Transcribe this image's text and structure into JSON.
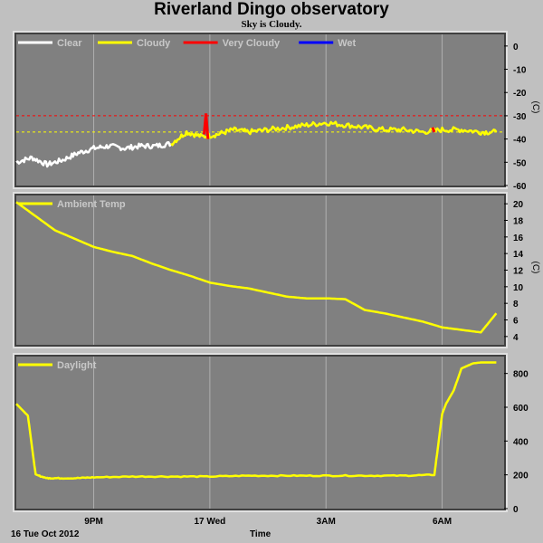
{
  "title": "Riverland Dingo observatory",
  "subtitle": "Sky is Cloudy.",
  "footer": {
    "date": "16 Tue Oct 2012",
    "time_label": "Time"
  },
  "x_ticks": [
    {
      "label": "9PM",
      "t": 2.0
    },
    {
      "label": "17 Wed",
      "t": 5.0
    },
    {
      "label": "3AM",
      "t": 8.0
    },
    {
      "label": "6AM",
      "t": 11.0
    }
  ],
  "colors": {
    "background": "#c0c0c0",
    "plot_bg": "#808080",
    "clear": "#ffffff",
    "cloudy": "#ffff00",
    "very_cloudy": "#ff0000",
    "wet": "#0000ff"
  },
  "chart_data": [
    {
      "type": "line",
      "name": "sky",
      "yunit": "(C)",
      "ylim": [
        -60,
        5
      ],
      "yticks": [
        0,
        -10,
        -20,
        -30,
        -40,
        -50,
        -60
      ],
      "legend": [
        {
          "label": "Clear",
          "color": "#ffffff"
        },
        {
          "label": "Cloudy",
          "color": "#ffff00"
        },
        {
          "label": "Very Cloudy",
          "color": "#ff0000"
        },
        {
          "label": "Wet",
          "color": "#0000ff"
        }
      ],
      "thresholds": [
        {
          "value": -30,
          "color": "#ff0000"
        },
        {
          "value": -37,
          "color": "#ffff00"
        }
      ],
      "series": [
        {
          "name": "Clear",
          "color": "#ffffff",
          "x": [
            0.0,
            0.4,
            0.8,
            1.2,
            1.6,
            2.0,
            2.4,
            2.8,
            3.2,
            3.6,
            4.0
          ],
          "y": [
            -50,
            -48,
            -51,
            -49,
            -46,
            -44,
            -43,
            -44,
            -43,
            -43,
            -42
          ]
        },
        {
          "name": "Cloudy",
          "color": "#ffff00",
          "x": [
            4.0,
            4.4,
            4.8,
            5.2,
            5.6,
            6.0,
            6.5,
            7.0,
            7.5,
            8.0,
            8.5,
            9.0,
            9.5,
            10.0,
            10.5,
            11.0,
            11.5,
            12.0,
            12.4
          ],
          "y": [
            -42,
            -37,
            -39,
            -38,
            -36,
            -37,
            -36,
            -35,
            -34,
            -33,
            -34,
            -35,
            -36,
            -36,
            -37,
            -36,
            -36,
            -37,
            -37
          ]
        },
        {
          "name": "Very Cloudy",
          "color": "#ff0000",
          "x": [
            4.85,
            4.9,
            4.95,
            10.75,
            10.8
          ],
          "y": [
            -38,
            -29,
            -40,
            -35,
            -37
          ]
        }
      ]
    },
    {
      "type": "line",
      "name": "ambient",
      "yunit": "(C)",
      "ylim": [
        3,
        21
      ],
      "yticks": [
        4,
        6,
        8,
        10,
        12,
        14,
        16,
        18,
        20
      ],
      "legend": [
        {
          "label": "Ambient Temp",
          "color": "#ffff00"
        }
      ],
      "series": [
        {
          "name": "Ambient Temp",
          "color": "#ffff00",
          "x": [
            0.0,
            0.5,
            1.0,
            1.5,
            2.0,
            2.5,
            3.0,
            3.5,
            4.0,
            4.5,
            5.0,
            5.5,
            6.0,
            6.5,
            7.0,
            7.5,
            8.0,
            8.5,
            9.0,
            9.5,
            10.0,
            10.5,
            11.0,
            11.5,
            12.0,
            12.4
          ],
          "y": [
            20.2,
            18.5,
            16.8,
            15.8,
            14.8,
            14.2,
            13.7,
            12.8,
            12.0,
            11.3,
            10.5,
            10.1,
            9.8,
            9.3,
            8.8,
            8.6,
            8.6,
            8.5,
            7.2,
            6.8,
            6.3,
            5.8,
            5.1,
            4.8,
            4.5,
            6.8
          ]
        }
      ]
    },
    {
      "type": "line",
      "name": "daylight",
      "ylim": [
        0,
        900
      ],
      "yticks": [
        0,
        200,
        400,
        600,
        800
      ],
      "legend": [
        {
          "label": "Daylight",
          "color": "#ffff00"
        }
      ],
      "series": [
        {
          "name": "Daylight",
          "color": "#ffff00",
          "x": [
            0.0,
            0.3,
            0.5,
            0.8,
            1.0,
            1.5,
            2.0,
            3.0,
            4.0,
            5.0,
            6.0,
            7.0,
            8.0,
            9.0,
            10.0,
            10.8,
            11.0,
            11.1,
            11.3,
            11.5,
            11.8,
            12.0,
            12.4
          ],
          "y": [
            620,
            550,
            200,
            180,
            180,
            180,
            185,
            190,
            190,
            190,
            195,
            195,
            195,
            195,
            195,
            200,
            560,
            620,
            700,
            830,
            860,
            865,
            865
          ]
        }
      ]
    }
  ]
}
